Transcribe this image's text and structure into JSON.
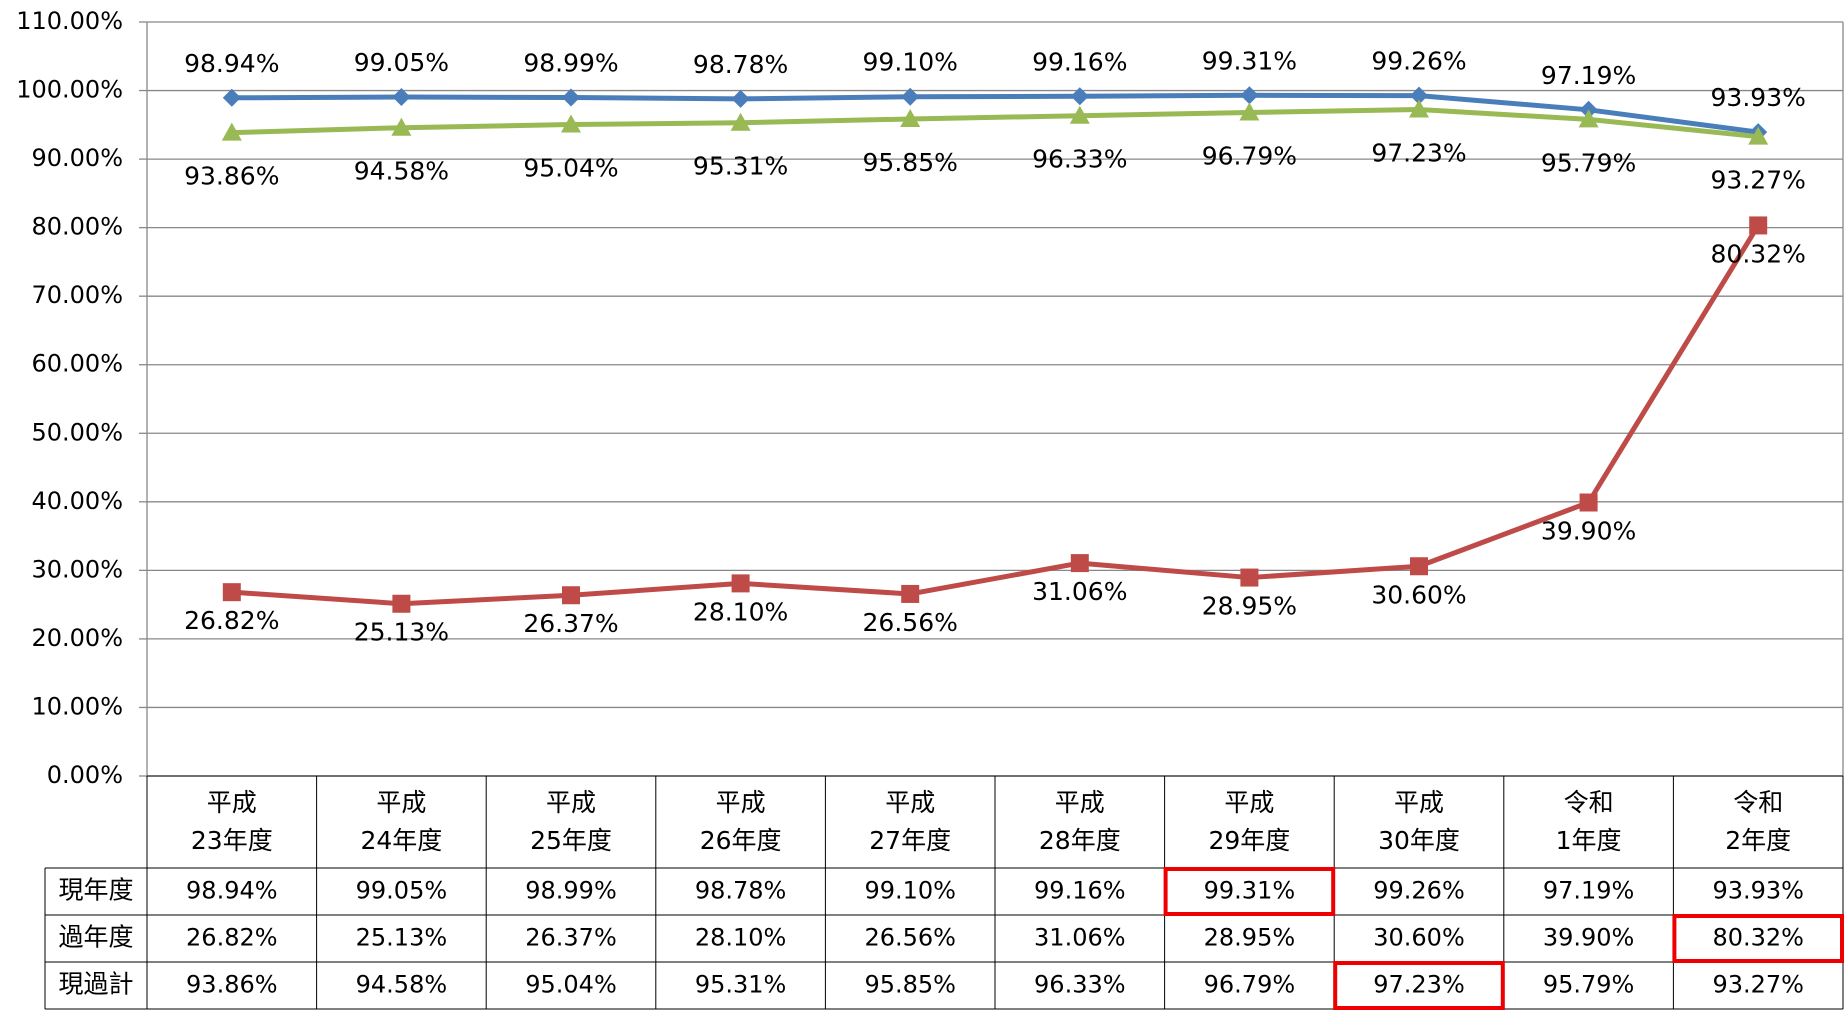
{
  "chart_data": {
    "type": "line",
    "categories": [
      "平成\n23年度",
      "平成\n24年度",
      "平成\n25年度",
      "平成\n26年度",
      "平成\n27年度",
      "平成\n28年度",
      "平成\n29年度",
      "平成\n30年度",
      "令和\n1年度",
      "令和\n2年度"
    ],
    "series": [
      {
        "name": "現年度",
        "color": "#4a7ebb",
        "marker": "diamond",
        "highlight": 6,
        "values": [
          98.94,
          99.05,
          98.99,
          98.78,
          99.1,
          99.16,
          99.31,
          99.26,
          97.19,
          93.93
        ],
        "value_labels": [
          "98.94%",
          "99.05%",
          "98.99%",
          "98.78%",
          "99.10%",
          "99.16%",
          "99.31%",
          "99.26%",
          "97.19%",
          "93.93%"
        ]
      },
      {
        "name": "過年度",
        "color": "#be4b48",
        "marker": "square",
        "highlight": 9,
        "values": [
          26.82,
          25.13,
          26.37,
          28.1,
          26.56,
          31.06,
          28.95,
          30.6,
          39.9,
          80.32
        ],
        "value_labels": [
          "26.82%",
          "25.13%",
          "26.37%",
          "28.10%",
          "26.56%",
          "31.06%",
          "28.95%",
          "30.60%",
          "39.90%",
          "80.32%"
        ]
      },
      {
        "name": "現過計",
        "color": "#98b954",
        "marker": "triangle",
        "highlight": 7,
        "values": [
          93.86,
          94.58,
          95.04,
          95.31,
          95.85,
          96.33,
          96.79,
          97.23,
          95.79,
          93.27
        ],
        "value_labels": [
          "93.86%",
          "94.58%",
          "95.04%",
          "95.31%",
          "95.85%",
          "96.33%",
          "96.79%",
          "97.23%",
          "95.79%",
          "93.27%"
        ]
      }
    ],
    "ylim": [
      0,
      110
    ],
    "yticks": [
      {
        "value": 0,
        "label": "0.00%"
      },
      {
        "value": 10,
        "label": "10.00%"
      },
      {
        "value": 20,
        "label": "20.00%"
      },
      {
        "value": 30,
        "label": "30.00%"
      },
      {
        "value": 40,
        "label": "40.00%"
      },
      {
        "value": 50,
        "label": "50.00%"
      },
      {
        "value": 60,
        "label": "60.00%"
      },
      {
        "value": 70,
        "label": "70.00%"
      },
      {
        "value": 80,
        "label": "80.00%"
      },
      {
        "value": 90,
        "label": "90.00%"
      },
      {
        "value": 100,
        "label": "100.00%"
      },
      {
        "value": 110,
        "label": "110.00%"
      }
    ],
    "grid": true
  }
}
